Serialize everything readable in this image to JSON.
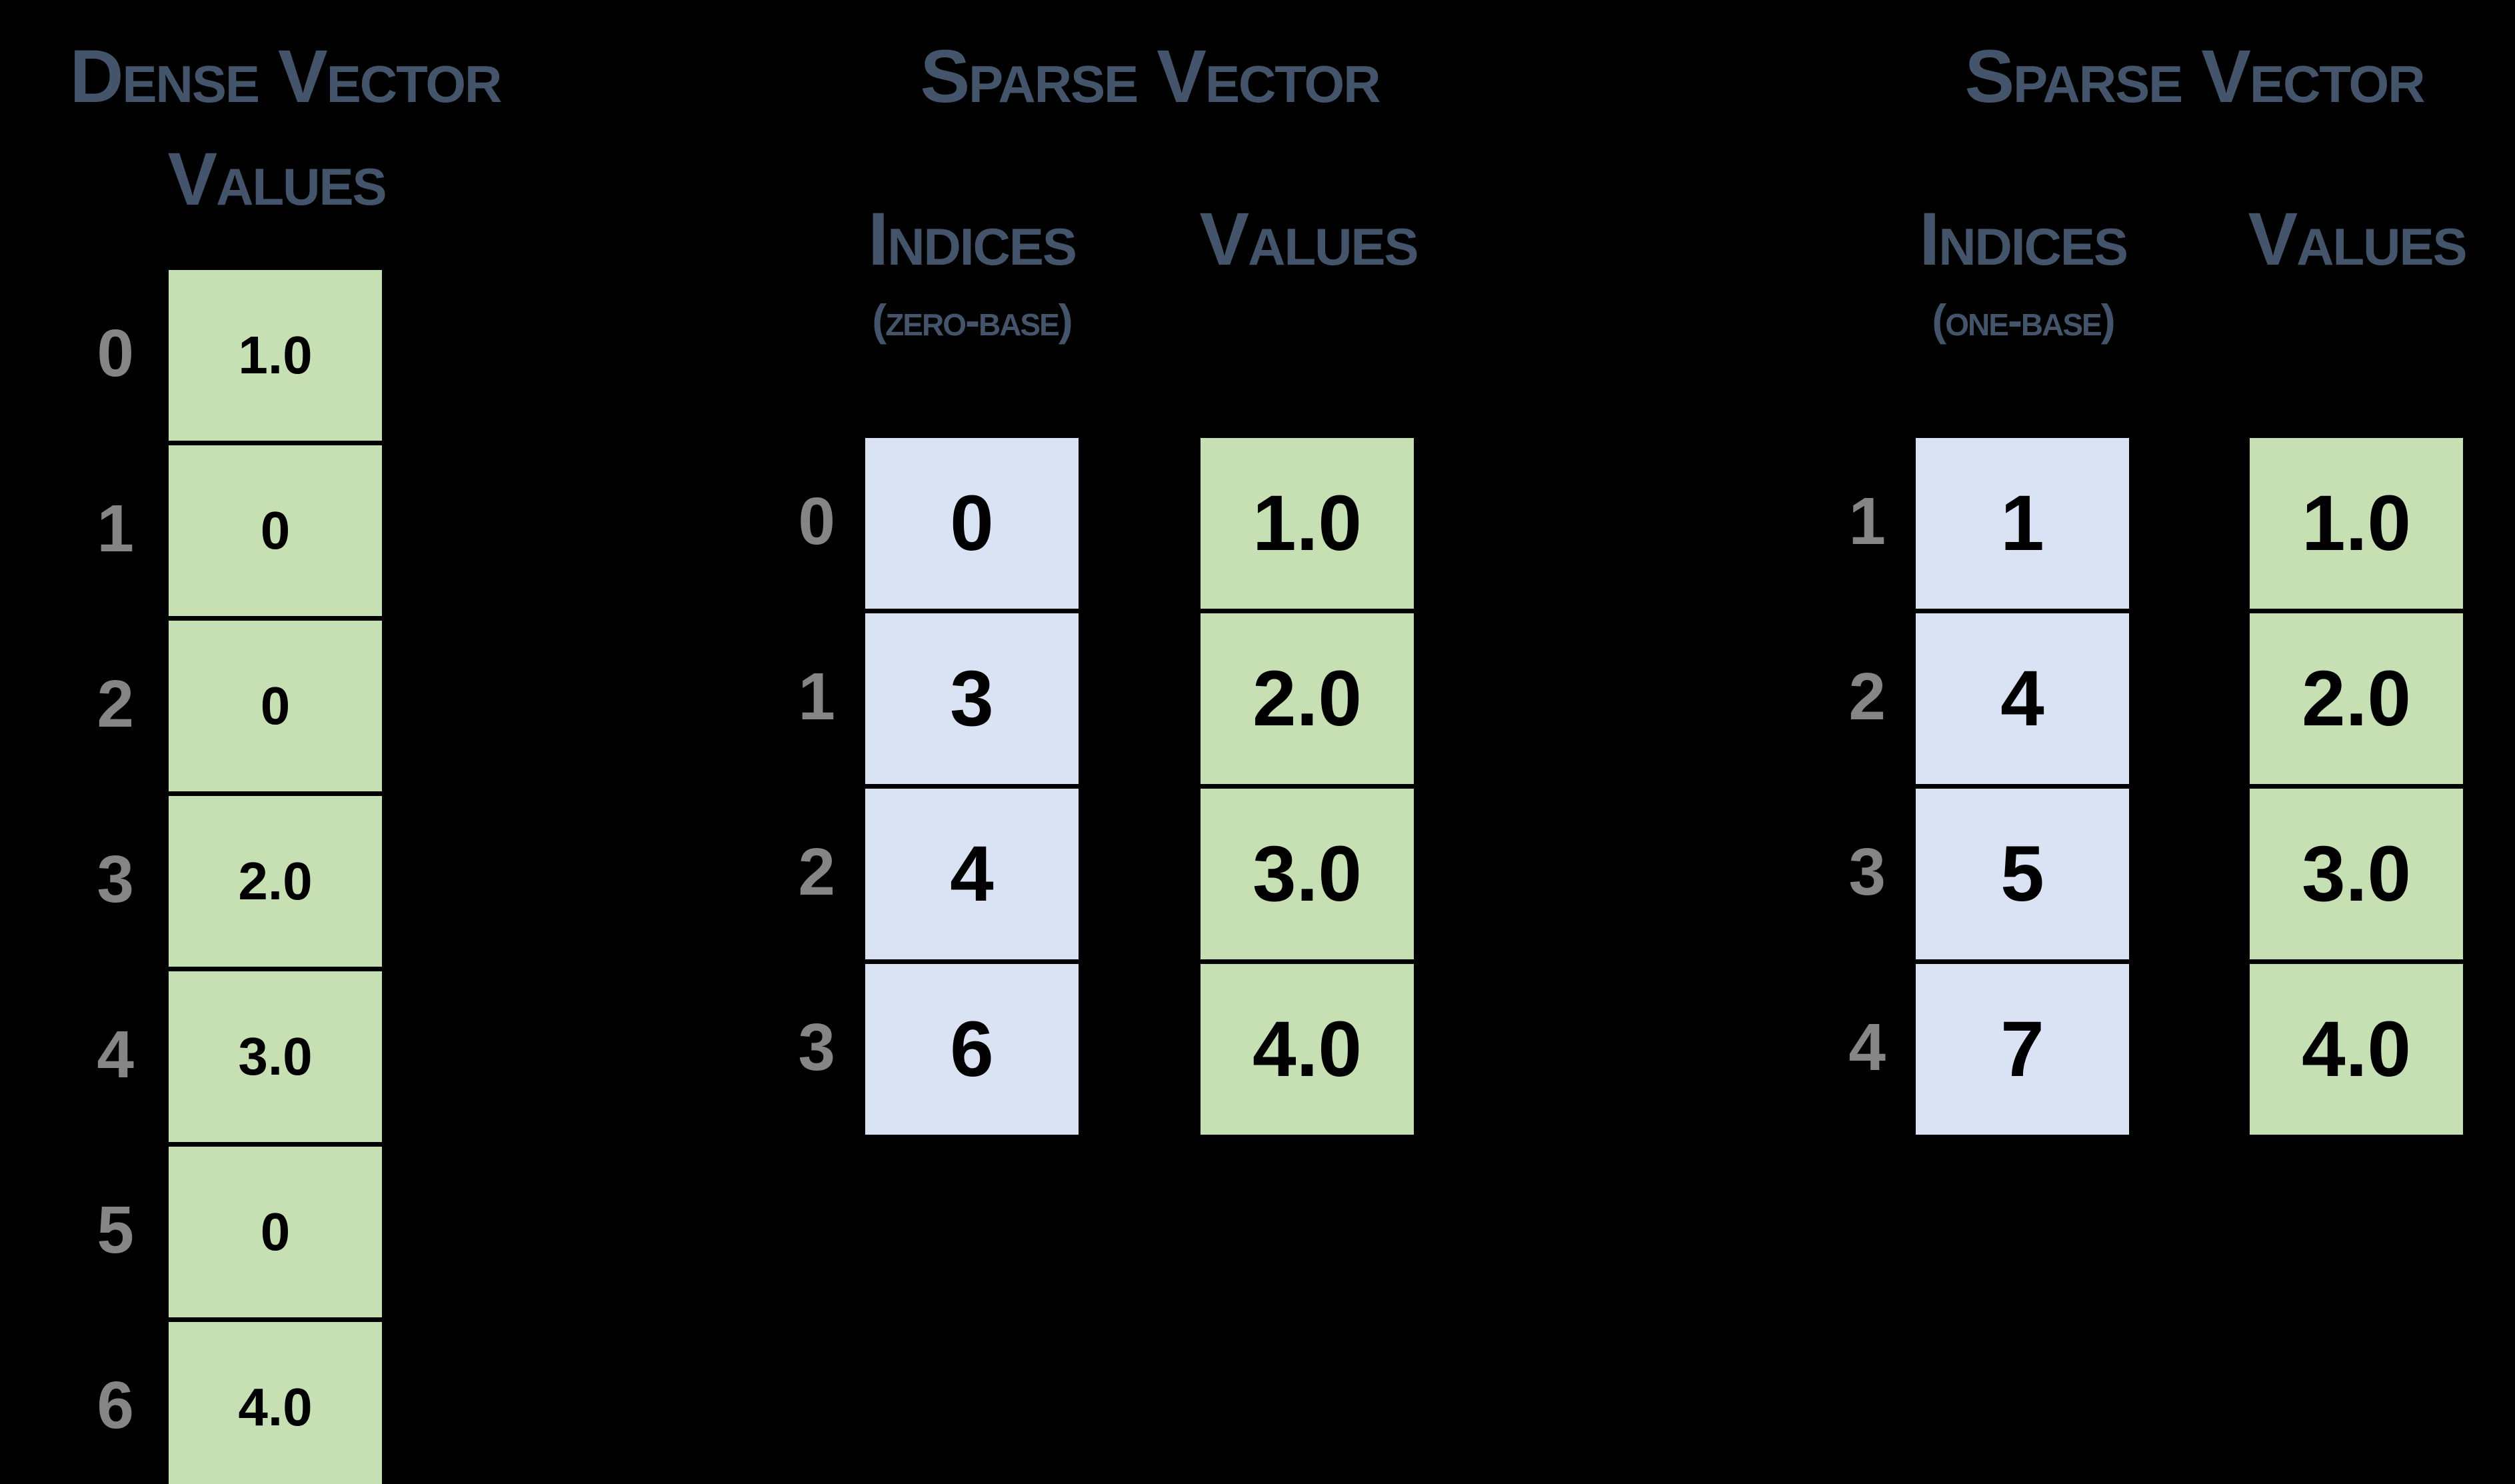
{
  "colors": {
    "background": "#000000",
    "title_text": "#44546A",
    "row_label_text": "#858585",
    "cell_text": "#000000",
    "green_fill": "#C6E0B4",
    "blue_fill": "#DAE3F3",
    "cell_border": "#000000"
  },
  "dense": {
    "title": "Dense Vector",
    "values_header": "Values",
    "row_labels": [
      "0",
      "1",
      "2",
      "3",
      "4",
      "5",
      "6"
    ],
    "values": [
      "1.0",
      "0",
      "0",
      "2.0",
      "3.0",
      "0",
      "4.0"
    ]
  },
  "sparse_zero_base": {
    "title": "Sparse Vector",
    "indices_header": "Indices",
    "indices_subheader": "(zero-base)",
    "values_header": "Values",
    "row_labels": [
      "0",
      "1",
      "2",
      "3"
    ],
    "indices": [
      "0",
      "3",
      "4",
      "6"
    ],
    "values": [
      "1.0",
      "2.0",
      "3.0",
      "4.0"
    ]
  },
  "sparse_one_base": {
    "title": "Sparse Vector",
    "indices_header": "Indices",
    "indices_subheader": "(one-base)",
    "values_header": "Values",
    "row_labels": [
      "1",
      "2",
      "3",
      "4"
    ],
    "indices": [
      "1",
      "4",
      "5",
      "7"
    ],
    "values": [
      "1.0",
      "2.0",
      "3.0",
      "4.0"
    ]
  }
}
